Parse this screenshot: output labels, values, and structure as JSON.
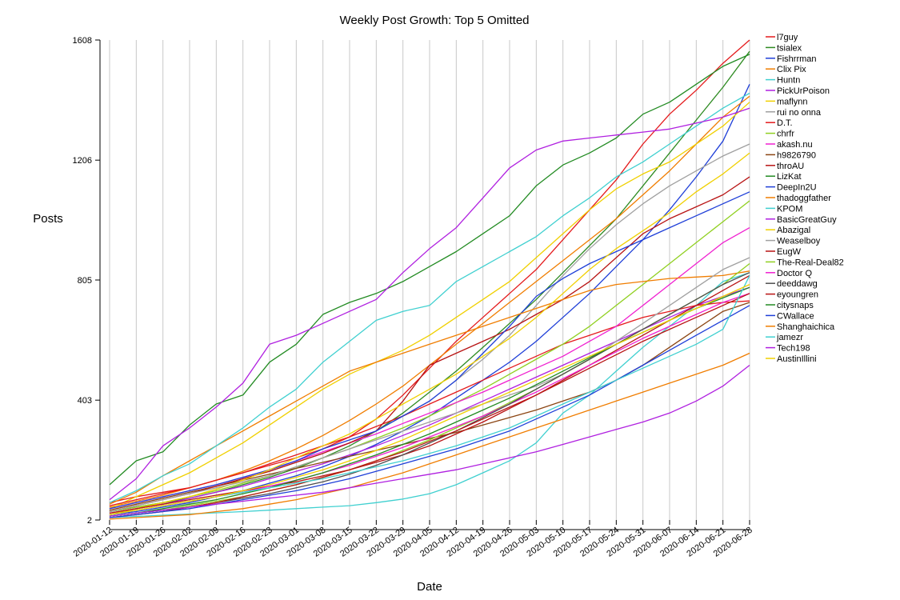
{
  "chart_data": {
    "type": "line",
    "title": "Weekly Post Growth: Top 5 Omitted",
    "xlabel": "Date",
    "ylabel": "Posts",
    "x": [
      "2020-01-12",
      "2020-01-19",
      "2020-01-26",
      "2020-02-02",
      "2020-02-09",
      "2020-02-16",
      "2020-02-23",
      "2020-03-01",
      "2020-03-08",
      "2020-03-15",
      "2020-03-22",
      "2020-03-29",
      "2020-04-05",
      "2020-04-12",
      "2020-04-19",
      "2020-04-26",
      "2020-05-03",
      "2020-05-10",
      "2020-05-17",
      "2020-05-24",
      "2020-05-31",
      "2020-06-07",
      "2020-06-14",
      "2020-06-21",
      "2020-06-28"
    ],
    "yticks": [
      2,
      403,
      805,
      1206,
      1608
    ],
    "ylim": [
      2,
      1608
    ],
    "grid": "vertical",
    "legend": "right",
    "series": [
      {
        "name": "l7guy",
        "color": "#e41a1c",
        "values": [
          60,
          80,
          95,
          110,
          135,
          160,
          185,
          210,
          240,
          280,
          340,
          420,
          510,
          600,
          680,
          760,
          840,
          940,
          1040,
          1140,
          1260,
          1360,
          1440,
          1530,
          1608
        ]
      },
      {
        "name": "tsialex",
        "color": "#2e8b22",
        "values": [
          30,
          45,
          60,
          75,
          95,
          120,
          145,
          175,
          210,
          250,
          300,
          360,
          430,
          500,
          580,
          660,
          740,
          830,
          920,
          1010,
          1120,
          1230,
          1340,
          1450,
          1570
        ]
      },
      {
        "name": "Fishrrman",
        "color": "#1f3fd8",
        "values": [
          20,
          30,
          45,
          60,
          80,
          100,
          125,
          150,
          180,
          215,
          255,
          300,
          350,
          410,
          470,
          530,
          600,
          680,
          760,
          850,
          940,
          1040,
          1150,
          1270,
          1460
        ]
      },
      {
        "name": "Clix Pix",
        "color": "#f07d00",
        "values": [
          45,
          65,
          85,
          110,
          135,
          165,
          200,
          240,
          285,
          335,
          390,
          450,
          520,
          590,
          660,
          730,
          800,
          870,
          940,
          1010,
          1090,
          1170,
          1260,
          1350,
          1420
        ]
      },
      {
        "name": "Huntn",
        "color": "#40d0d0",
        "values": [
          10,
          14,
          18,
          22,
          26,
          30,
          35,
          40,
          45,
          50,
          60,
          72,
          90,
          120,
          160,
          200,
          260,
          360,
          420,
          500,
          580,
          650,
          720,
          800,
          830
        ]
      },
      {
        "name": "PickUrPoison",
        "color": "#b020e0",
        "values": [
          25,
          40,
          55,
          75,
          95,
          115,
          140,
          165,
          190,
          220,
          250,
          285,
          320,
          360,
          400,
          440,
          480,
          520,
          560,
          600,
          640,
          680,
          720,
          750,
          780
        ]
      },
      {
        "name": "maflynn",
        "color": "#f0d000",
        "values": [
          40,
          80,
          120,
          160,
          210,
          260,
          320,
          380,
          440,
          490,
          530,
          570,
          620,
          680,
          740,
          800,
          880,
          960,
          1040,
          1110,
          1160,
          1200,
          1260,
          1320,
          1400
        ]
      },
      {
        "name": "rui no onna",
        "color": "#a0a0a0",
        "values": [
          35,
          55,
          75,
          95,
          115,
          140,
          165,
          195,
          225,
          260,
          300,
          350,
          400,
          470,
          540,
          620,
          720,
          820,
          910,
          990,
          1060,
          1120,
          1170,
          1220,
          1260
        ]
      },
      {
        "name": "D.T.",
        "color": "#e41a1c",
        "values": [
          50,
          70,
          90,
          110,
          135,
          160,
          190,
          220,
          250,
          280,
          315,
          350,
          390,
          430,
          470,
          510,
          550,
          590,
          620,
          650,
          680,
          700,
          720,
          730,
          735
        ]
      },
      {
        "name": "chrfr",
        "color": "#90d020",
        "values": [
          30,
          45,
          60,
          80,
          100,
          125,
          150,
          180,
          210,
          240,
          275,
          310,
          350,
          395,
          440,
          490,
          540,
          590,
          650,
          720,
          790,
          860,
          930,
          1000,
          1070
        ]
      },
      {
        "name": "akash.nu",
        "color": "#f020d0",
        "values": [
          40,
          60,
          80,
          100,
          120,
          145,
          170,
          200,
          230,
          260,
          290,
          325,
          360,
          395,
          430,
          470,
          510,
          550,
          600,
          650,
          720,
          790,
          860,
          930,
          980
        ]
      },
      {
        "name": "h9826790",
        "color": "#8b4513",
        "values": [
          35,
          55,
          75,
          95,
          115,
          135,
          155,
          175,
          195,
          215,
          235,
          255,
          275,
          295,
          320,
          345,
          370,
          400,
          430,
          470,
          520,
          580,
          640,
          700,
          730
        ]
      },
      {
        "name": "throAU",
        "color": "#b81414",
        "values": [
          30,
          50,
          70,
          90,
          115,
          140,
          165,
          195,
          225,
          260,
          300,
          400,
          520,
          560,
          600,
          640,
          690,
          740,
          800,
          880,
          960,
          1010,
          1050,
          1090,
          1150
        ]
      },
      {
        "name": "LizKat",
        "color": "#228b22",
        "values": [
          120,
          200,
          230,
          320,
          390,
          420,
          530,
          590,
          690,
          730,
          760,
          800,
          850,
          900,
          960,
          1020,
          1120,
          1190,
          1230,
          1280,
          1360,
          1400,
          1460,
          1520,
          1560
        ]
      },
      {
        "name": "DeepIn2U",
        "color": "#1f3fd8",
        "values": [
          40,
          60,
          80,
          100,
          120,
          145,
          170,
          200,
          240,
          270,
          300,
          350,
          400,
          470,
          560,
          650,
          750,
          810,
          860,
          900,
          940,
          980,
          1020,
          1060,
          1100
        ]
      },
      {
        "name": "thadoggfather",
        "color": "#f07d00",
        "values": [
          55,
          95,
          150,
          200,
          250,
          300,
          350,
          400,
          450,
          500,
          530,
          560,
          590,
          620,
          650,
          680,
          710,
          740,
          770,
          790,
          800,
          810,
          815,
          820,
          835
        ]
      },
      {
        "name": "KPOM",
        "color": "#40d0d0",
        "values": [
          60,
          100,
          150,
          190,
          250,
          310,
          380,
          440,
          530,
          600,
          670,
          700,
          720,
          800,
          850,
          900,
          950,
          1020,
          1080,
          1150,
          1200,
          1260,
          1320,
          1380,
          1430
        ]
      },
      {
        "name": "BasicGreatGuy",
        "color": "#b020e0",
        "values": [
          70,
          140,
          250,
          310,
          380,
          460,
          590,
          620,
          660,
          700,
          740,
          830,
          910,
          980,
          1080,
          1180,
          1240,
          1270,
          1280,
          1290,
          1300,
          1310,
          1330,
          1350,
          1380
        ]
      },
      {
        "name": "Abazigal",
        "color": "#f0d000",
        "values": [
          20,
          40,
          60,
          80,
          105,
          135,
          170,
          210,
          250,
          290,
          340,
          390,
          440,
          490,
          550,
          610,
          680,
          760,
          840,
          910,
          970,
          1030,
          1100,
          1160,
          1230
        ]
      },
      {
        "name": "Weaselboy",
        "color": "#a0a0a0",
        "values": [
          30,
          50,
          70,
          90,
          110,
          130,
          150,
          180,
          210,
          240,
          270,
          300,
          330,
          360,
          390,
          420,
          450,
          490,
          540,
          600,
          660,
          720,
          780,
          840,
          880
        ]
      },
      {
        "name": "EugW",
        "color": "#b81414",
        "values": [
          25,
          40,
          55,
          70,
          85,
          100,
          115,
          130,
          150,
          170,
          195,
          220,
          250,
          290,
          330,
          375,
          420,
          470,
          520,
          570,
          620,
          670,
          720,
          770,
          820
        ]
      },
      {
        "name": "The-Real-Deal82",
        "color": "#90d020",
        "values": [
          15,
          25,
          35,
          50,
          65,
          80,
          100,
          120,
          145,
          170,
          200,
          235,
          270,
          310,
          350,
          395,
          440,
          490,
          540,
          590,
          640,
          690,
          740,
          790,
          860
        ]
      },
      {
        "name": "Doctor Q",
        "color": "#f020d0",
        "values": [
          20,
          35,
          50,
          65,
          80,
          95,
          115,
          135,
          160,
          185,
          215,
          245,
          280,
          315,
          350,
          390,
          430,
          475,
          520,
          565,
          610,
          650,
          690,
          730,
          760
        ]
      },
      {
        "name": "deeddawg",
        "color": "#505050",
        "values": [
          15,
          25,
          35,
          45,
          60,
          75,
          90,
          110,
          130,
          155,
          185,
          220,
          260,
          300,
          345,
          390,
          440,
          490,
          540,
          590,
          640,
          690,
          740,
          790,
          830
        ]
      },
      {
        "name": "eyoungren",
        "color": "#b81414",
        "values": [
          10,
          20,
          30,
          45,
          60,
          80,
          100,
          120,
          145,
          170,
          200,
          230,
          265,
          300,
          340,
          380,
          420,
          465,
          510,
          555,
          600,
          640,
          680,
          720,
          760
        ]
      },
      {
        "name": "citysnaps",
        "color": "#228b22",
        "values": [
          15,
          25,
          40,
          55,
          70,
          90,
          110,
          135,
          160,
          190,
          220,
          255,
          290,
          330,
          370,
          410,
          455,
          500,
          545,
          590,
          630,
          670,
          710,
          745,
          780
        ]
      },
      {
        "name": "CWallace",
        "color": "#1f3fd8",
        "values": [
          10,
          20,
          30,
          40,
          55,
          70,
          85,
          100,
          120,
          140,
          165,
          190,
          215,
          240,
          270,
          300,
          340,
          380,
          420,
          470,
          520,
          570,
          620,
          670,
          720
        ]
      },
      {
        "name": "Shanghaichica",
        "color": "#f07d00",
        "values": [
          5,
          10,
          15,
          20,
          30,
          40,
          55,
          70,
          90,
          110,
          135,
          160,
          190,
          220,
          250,
          280,
          310,
          340,
          370,
          400,
          430,
          460,
          490,
          520,
          560
        ]
      },
      {
        "name": "jamezr",
        "color": "#40d0d0",
        "values": [
          20,
          35,
          50,
          65,
          80,
          95,
          110,
          125,
          140,
          160,
          180,
          200,
          225,
          250,
          280,
          310,
          350,
          390,
          430,
          470,
          510,
          550,
          590,
          640,
          820
        ]
      },
      {
        "name": "Tech198",
        "color": "#b020e0",
        "values": [
          15,
          25,
          35,
          45,
          55,
          65,
          75,
          85,
          95,
          110,
          125,
          140,
          155,
          170,
          190,
          210,
          230,
          255,
          280,
          305,
          330,
          360,
          400,
          450,
          520
        ]
      },
      {
        "name": "AustinIllini",
        "color": "#f0d000",
        "values": [
          20,
          35,
          50,
          65,
          80,
          100,
          120,
          145,
          170,
          200,
          235,
          270,
          310,
          350,
          390,
          430,
          470,
          510,
          550,
          590,
          630,
          670,
          710,
          750,
          790
        ]
      }
    ]
  }
}
